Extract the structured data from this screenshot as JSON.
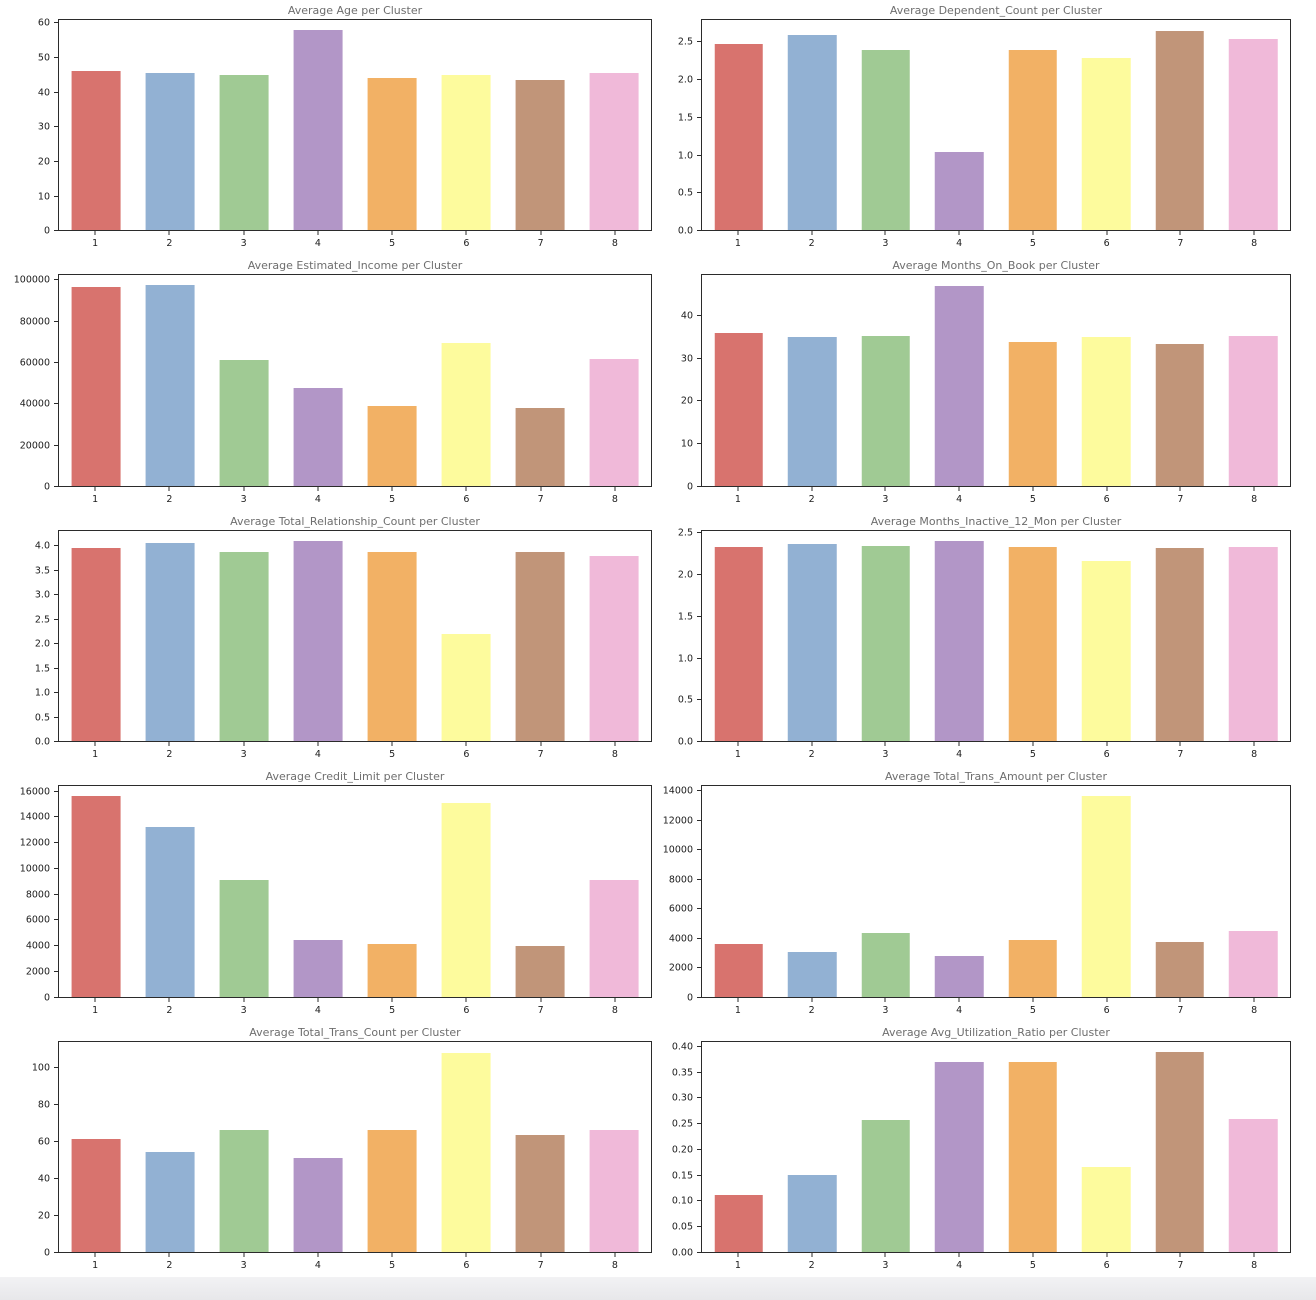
{
  "page": {
    "background": "#ffffff",
    "footer_strip_color": "#ececef",
    "title_color": "#6e6e6e",
    "tick_color": "#1c1c1c",
    "spine_color": "#2b2b2b"
  },
  "palette": {
    "cluster_colors": [
      "#d8736e",
      "#92b1d3",
      "#a0ca94",
      "#b296c7",
      "#f2b165",
      "#fdfb9d",
      "#c19579",
      "#f0b9d9"
    ]
  },
  "chart_data": [
    {
      "type": "bar",
      "title": "Average Age per Cluster",
      "xlabel": "",
      "ylabel": "",
      "grid": false,
      "legend": "none",
      "categories": [
        "1",
        "2",
        "3",
        "4",
        "5",
        "6",
        "7",
        "8"
      ],
      "values": [
        46.3,
        45.8,
        45.3,
        58.2,
        44.3,
        45.2,
        43.8,
        45.9
      ],
      "ylim": [
        0,
        61.2
      ],
      "yticks": [
        0,
        10,
        20,
        30,
        40,
        50,
        60
      ],
      "ytick_labels": [
        "0",
        "10",
        "20",
        "30",
        "40",
        "50",
        "60"
      ]
    },
    {
      "type": "bar",
      "title": "Average Dependent_Count per Cluster",
      "xlabel": "",
      "ylabel": "",
      "grid": false,
      "legend": "none",
      "categories": [
        "1",
        "2",
        "3",
        "4",
        "5",
        "6",
        "7",
        "8"
      ],
      "values": [
        2.48,
        2.6,
        2.4,
        1.05,
        2.4,
        2.29,
        2.66,
        2.55
      ],
      "ylim": [
        0,
        2.8
      ],
      "yticks": [
        0,
        0.5,
        1.0,
        1.5,
        2.0,
        2.5
      ],
      "ytick_labels": [
        "0.0",
        "0.5",
        "1.0",
        "1.5",
        "2.0",
        "2.5"
      ]
    },
    {
      "type": "bar",
      "title": "Average Estimated_Income per Cluster",
      "xlabel": "",
      "ylabel": "",
      "grid": false,
      "legend": "none",
      "categories": [
        "1",
        "2",
        "3",
        "4",
        "5",
        "6",
        "7",
        "8"
      ],
      "values": [
        97300,
        98000,
        61300,
        47800,
        39200,
        69800,
        38200,
        61800
      ],
      "ylim": [
        0,
        102900
      ],
      "yticks": [
        0,
        20000,
        40000,
        60000,
        80000,
        100000
      ],
      "ytick_labels": [
        "0",
        "20000",
        "40000",
        "60000",
        "80000",
        "100000"
      ]
    },
    {
      "type": "bar",
      "title": "Average Months_On_Book per Cluster",
      "xlabel": "",
      "ylabel": "",
      "grid": false,
      "legend": "none",
      "categories": [
        "1",
        "2",
        "3",
        "4",
        "5",
        "6",
        "7",
        "8"
      ],
      "values": [
        36.0,
        35.1,
        35.3,
        47.3,
        34.0,
        35.1,
        33.4,
        35.3
      ],
      "ylim": [
        0,
        49.7
      ],
      "yticks": [
        0,
        10,
        20,
        30,
        40
      ],
      "ytick_labels": [
        "0",
        "10",
        "20",
        "30",
        "40"
      ]
    },
    {
      "type": "bar",
      "title": "Average Total_Relationship_Count per Cluster",
      "xlabel": "",
      "ylabel": "",
      "grid": false,
      "legend": "none",
      "categories": [
        "1",
        "2",
        "3",
        "4",
        "5",
        "6",
        "7",
        "8"
      ],
      "values": [
        3.97,
        4.08,
        3.9,
        4.12,
        3.9,
        2.21,
        3.9,
        3.81
      ],
      "ylim": [
        0,
        4.33
      ],
      "yticks": [
        0,
        0.5,
        1.0,
        1.5,
        2.0,
        2.5,
        3.0,
        3.5,
        4.0
      ],
      "ytick_labels": [
        "0.0",
        "0.5",
        "1.0",
        "1.5",
        "2.0",
        "2.5",
        "3.0",
        "3.5",
        "4.0"
      ]
    },
    {
      "type": "bar",
      "title": "Average Months_Inactive_12_Mon per Cluster",
      "xlabel": "",
      "ylabel": "",
      "grid": false,
      "legend": "none",
      "categories": [
        "1",
        "2",
        "3",
        "4",
        "5",
        "6",
        "7",
        "8"
      ],
      "values": [
        2.34,
        2.38,
        2.36,
        2.42,
        2.35,
        2.18,
        2.33,
        2.34
      ],
      "ylim": [
        0,
        2.54
      ],
      "yticks": [
        0,
        0.5,
        1.0,
        1.5,
        2.0,
        2.5
      ],
      "ytick_labels": [
        "0.0",
        "0.5",
        "1.0",
        "1.5",
        "2.0",
        "2.5"
      ]
    },
    {
      "type": "bar",
      "title": "Average Credit_Limit per Cluster",
      "xlabel": "",
      "ylabel": "",
      "grid": false,
      "legend": "none",
      "categories": [
        "1",
        "2",
        "3",
        "4",
        "5",
        "6",
        "7",
        "8"
      ],
      "values": [
        15700,
        13300,
        9150,
        4450,
        4100,
        15200,
        4000,
        9150
      ],
      "ylim": [
        0,
        16500
      ],
      "yticks": [
        0,
        2000,
        4000,
        6000,
        8000,
        10000,
        12000,
        14000,
        16000
      ],
      "ytick_labels": [
        "0",
        "2000",
        "4000",
        "6000",
        "8000",
        "10000",
        "12000",
        "14000",
        "16000"
      ]
    },
    {
      "type": "bar",
      "title": "Average Total_Trans_Amount per Cluster",
      "xlabel": "",
      "ylabel": "",
      "grid": false,
      "legend": "none",
      "categories": [
        "1",
        "2",
        "3",
        "4",
        "5",
        "6",
        "7",
        "8"
      ],
      "values": [
        3620,
        3080,
        4350,
        2780,
        3870,
        13700,
        3750,
        4470
      ],
      "ylim": [
        0,
        14400
      ],
      "yticks": [
        0,
        2000,
        4000,
        6000,
        8000,
        10000,
        12000,
        14000
      ],
      "ytick_labels": [
        "0",
        "2000",
        "4000",
        "6000",
        "8000",
        "10000",
        "12000",
        "14000"
      ]
    },
    {
      "type": "bar",
      "title": "Average Total_Trans_Count per Cluster",
      "xlabel": "",
      "ylabel": "",
      "grid": false,
      "legend": "none",
      "categories": [
        "1",
        "2",
        "3",
        "4",
        "5",
        "6",
        "7",
        "8"
      ],
      "values": [
        61.3,
        54.3,
        66.3,
        51.0,
        66.5,
        108.5,
        63.8,
        66.3
      ],
      "ylim": [
        0,
        114.5
      ],
      "yticks": [
        0,
        20,
        40,
        60,
        80,
        100
      ],
      "ytick_labels": [
        "0",
        "20",
        "40",
        "60",
        "80",
        "100"
      ]
    },
    {
      "type": "bar",
      "title": "Average Avg_Utilization_Ratio per Cluster",
      "xlabel": "",
      "ylabel": "",
      "grid": false,
      "legend": "none",
      "categories": [
        "1",
        "2",
        "3",
        "4",
        "5",
        "6",
        "7",
        "8"
      ],
      "values": [
        0.111,
        0.15,
        0.258,
        0.372,
        0.373,
        0.166,
        0.392,
        0.26
      ],
      "ylim": [
        0,
        0.412
      ],
      "yticks": [
        0,
        0.05,
        0.1,
        0.15,
        0.2,
        0.25,
        0.3,
        0.35,
        0.4
      ],
      "ytick_labels": [
        "0.00",
        "0.05",
        "0.10",
        "0.15",
        "0.20",
        "0.25",
        "0.30",
        "0.35",
        "0.40"
      ]
    }
  ]
}
